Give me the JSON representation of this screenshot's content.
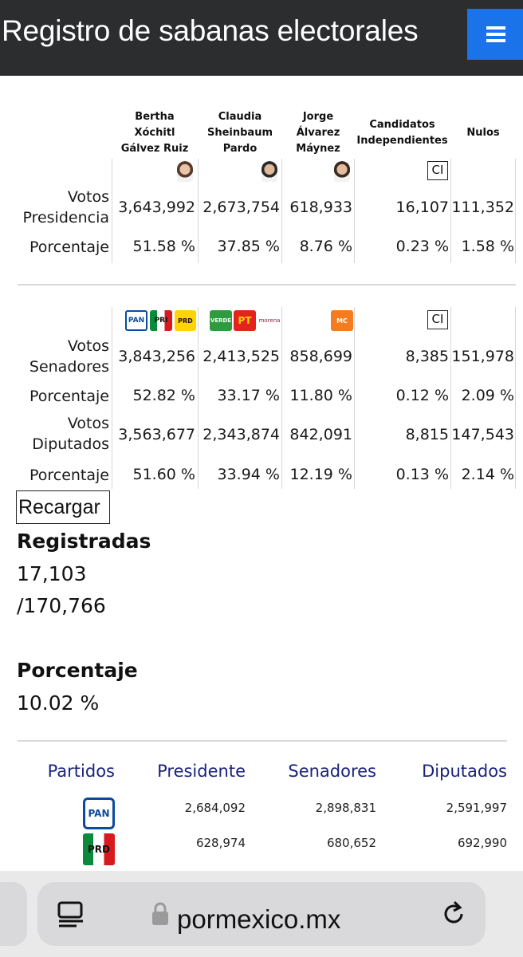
{
  "header": {
    "title": "Registro de sabanas electorales",
    "menu_icon": "hamburger-icon"
  },
  "candidates": {
    "names": [
      [
        "Bertha",
        "Xóchitl",
        "Gálvez Ruiz"
      ],
      [
        "Claudia",
        "Sheinbaum",
        "Pardo"
      ],
      [
        "Jorge",
        "Álvarez",
        "Máynez"
      ],
      [
        "Candidatos",
        "Independientes"
      ],
      [
        "Nulos"
      ]
    ],
    "ci_label": "CI",
    "rows": [
      {
        "label": [
          "Votos",
          "Presidencia"
        ],
        "values": [
          "3,643,992",
          "2,673,754",
          "618,933",
          "16,107",
          "111,352"
        ]
      },
      {
        "label": [
          "Porcentaje"
        ],
        "values": [
          "51.58 %",
          "37.85 %",
          "8.76 %",
          "0.23 %",
          "1.58 %"
        ]
      },
      {
        "label": [
          "Votos",
          "Senadores"
        ],
        "values": [
          "3,843,256",
          "2,413,525",
          "858,699",
          "8,385",
          "151,978"
        ]
      },
      {
        "label": [
          "Porcentaje"
        ],
        "values": [
          "52.82 %",
          "33.17 %",
          "11.80 %",
          "0.12 %",
          "2.09 %"
        ]
      },
      {
        "label": [
          "Votos",
          "Diputados"
        ],
        "values": [
          "3,563,677",
          "2,343,874",
          "842,091",
          "8,815",
          "147,543"
        ]
      },
      {
        "label": [
          "Porcentaje"
        ],
        "values": [
          "51.60 %",
          "33.94 %",
          "12.19 %",
          "0.13 %",
          "2.14 %"
        ]
      }
    ],
    "party_logos": [
      "PAN",
      "PRD",
      "PRI",
      "VERDE",
      "PT",
      "morena",
      "MC"
    ]
  },
  "summary": {
    "reload_label": "Recargar",
    "registradas_label": "Registradas",
    "registradas_count": "17,103",
    "registradas_total": "/170,766",
    "porcentaje_label": "Porcentaje",
    "porcentaje_value": "10.02 %"
  },
  "parties_table": {
    "headers": [
      "Partidos",
      "Presidente",
      "Senadores",
      "Diputados"
    ],
    "rows": [
      {
        "party": "PAN",
        "values": [
          "2,684,092",
          "2,898,831",
          "2,591,997"
        ]
      },
      {
        "party": "PRD",
        "values": [
          "628,974",
          "680,652",
          "692,990"
        ]
      }
    ]
  },
  "browser": {
    "url": "pormexico.mx",
    "reader_icon": "reader-icon",
    "lock_icon": "lock-icon",
    "reload_icon": "reload-icon"
  },
  "colors": {
    "header_bg": "#2b2d2f",
    "menu_btn": "#1a73e8",
    "party_header": "#1a237e",
    "pan_blue": "#0b4a9e",
    "mc_orange": "#f47b20"
  }
}
